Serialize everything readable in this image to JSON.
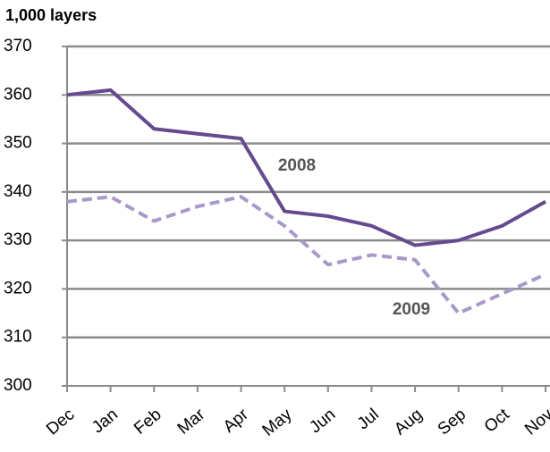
{
  "chart_data": {
    "type": "line",
    "y_label": "1,000 layers",
    "categories": [
      "Dec",
      "Jan",
      "Feb",
      "Mar",
      "Apr",
      "May",
      "Jun",
      "Jul",
      "Aug",
      "Sep",
      "Oct",
      "Nov"
    ],
    "series": [
      {
        "name": "2008",
        "color": "#644a8e",
        "dashed": false,
        "values": [
          360,
          361,
          353,
          352,
          351,
          336,
          335,
          333,
          329,
          330,
          333,
          338
        ]
      },
      {
        "name": "2009",
        "color": "#a999c9",
        "dashed": true,
        "values": [
          338,
          339,
          334,
          337,
          339,
          333,
          325,
          327,
          326,
          315,
          319,
          323
        ]
      }
    ],
    "ylim": [
      300,
      370
    ],
    "yticks": [
      300,
      310,
      320,
      330,
      340,
      350,
      360,
      370
    ],
    "grid": true
  }
}
